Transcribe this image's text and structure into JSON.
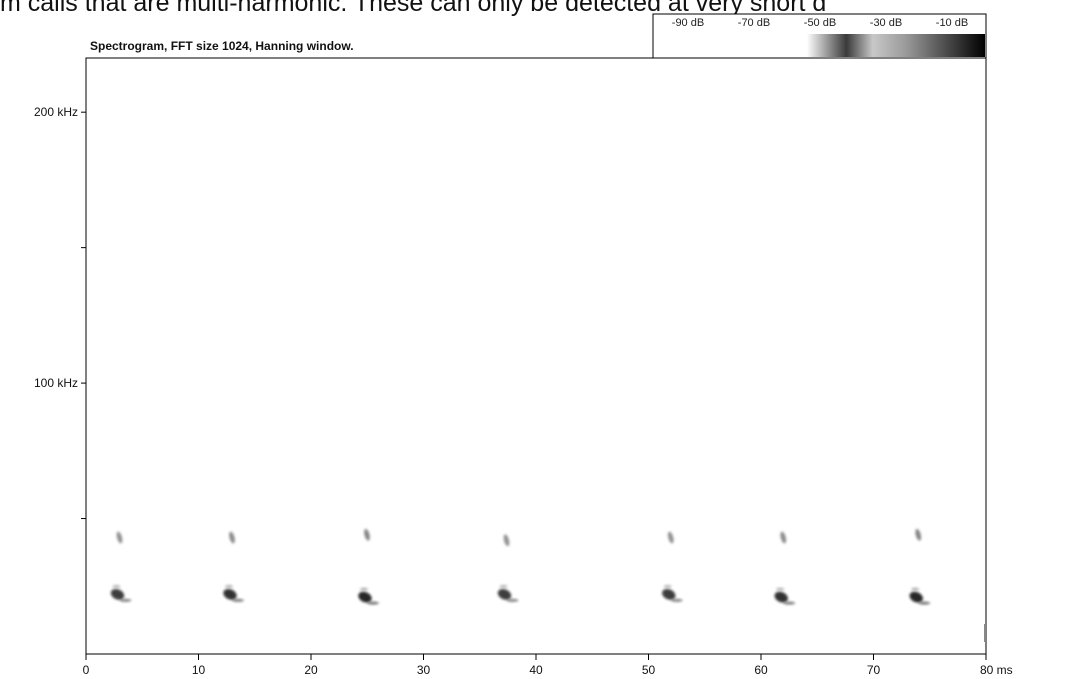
{
  "page": {
    "caption_text": "m calls that are multi-harmonic. These can only be detected at very short d"
  },
  "chart_data": {
    "type": "heatmap",
    "title": "Spectrogram, FFT size 1024, Hanning window.",
    "xlabel": "",
    "ylabel": "",
    "x_unit": "ms",
    "xlim": [
      0,
      80
    ],
    "ylim": [
      0,
      220
    ],
    "x_ticks": [
      {
        "value": 0,
        "label": "0"
      },
      {
        "value": 10,
        "label": "10"
      },
      {
        "value": 20,
        "label": "20"
      },
      {
        "value": 30,
        "label": "30"
      },
      {
        "value": 40,
        "label": "40"
      },
      {
        "value": 50,
        "label": "50"
      },
      {
        "value": 60,
        "label": "60"
      },
      {
        "value": 70,
        "label": "70"
      },
      {
        "value": 80,
        "label": "80 ms"
      }
    ],
    "y_ticks": [
      {
        "value": 50,
        "label": ""
      },
      {
        "value": 100,
        "label": "100 kHz"
      },
      {
        "value": 150,
        "label": ""
      },
      {
        "value": 200,
        "label": "200 kHz"
      }
    ],
    "colorbar": {
      "labels": [
        "-90 dB",
        "-70 dB",
        "-50 dB",
        "-30 dB",
        "-10 dB"
      ],
      "range_db": [
        -90,
        -10
      ]
    },
    "calls": [
      {
        "time_ms": 2.8,
        "fundamental_khz": 22,
        "harmonic_khz": 43,
        "strength": 0.85
      },
      {
        "time_ms": 12.8,
        "fundamental_khz": 22,
        "harmonic_khz": 43,
        "strength": 0.9
      },
      {
        "time_ms": 24.8,
        "fundamental_khz": 21,
        "harmonic_khz": 44,
        "strength": 0.95
      },
      {
        "time_ms": 37.2,
        "fundamental_khz": 22,
        "harmonic_khz": 42,
        "strength": 0.85
      },
      {
        "time_ms": 51.8,
        "fundamental_khz": 22,
        "harmonic_khz": 43,
        "strength": 0.85
      },
      {
        "time_ms": 61.8,
        "fundamental_khz": 21,
        "harmonic_khz": 43,
        "strength": 0.9
      },
      {
        "time_ms": 73.8,
        "fundamental_khz": 21,
        "harmonic_khz": 44,
        "strength": 0.95
      }
    ]
  }
}
